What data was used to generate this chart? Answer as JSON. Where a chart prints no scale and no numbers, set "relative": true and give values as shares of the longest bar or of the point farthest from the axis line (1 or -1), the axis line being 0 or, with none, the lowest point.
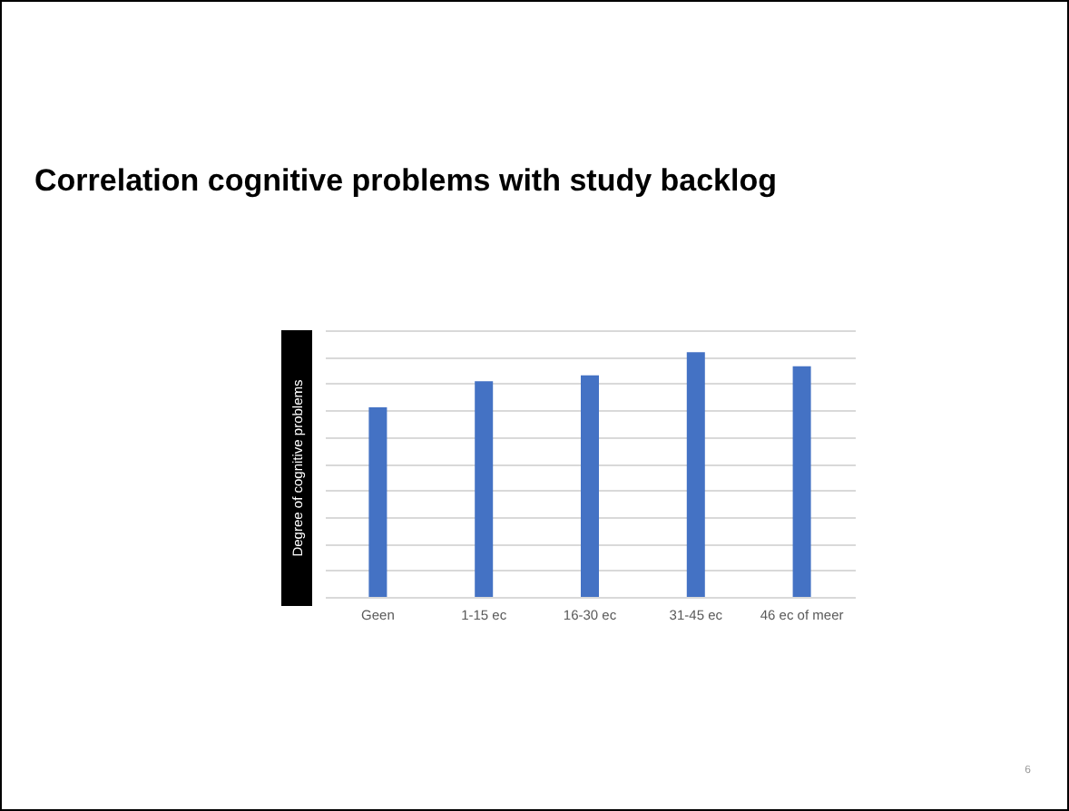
{
  "chart_data": {
    "type": "bar",
    "title": "Correlation cognitive problems with study backlog",
    "ylabel": "Degree of cognitive problems",
    "categories": [
      "Geen",
      "1-15 ec",
      "16-30 ec",
      "31-45 ec",
      "46 ec of meer"
    ],
    "values": [
      0.775,
      0.881,
      0.906,
      1,
      0.943
    ],
    "color": "#4472c4",
    "relative": true,
    "grid": "y",
    "annotations": [
      "6"
    ]
  }
}
